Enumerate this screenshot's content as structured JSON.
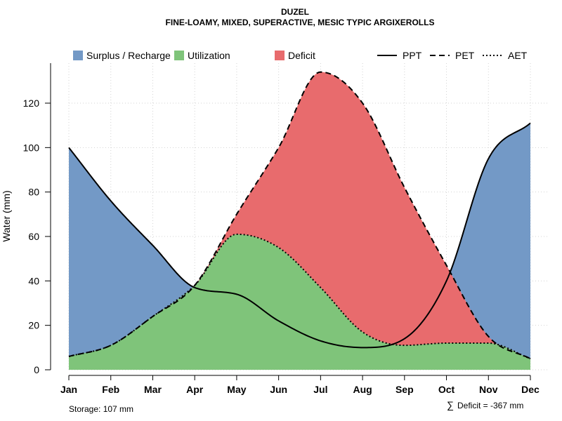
{
  "chart_data": {
    "type": "area",
    "title": "DUZEL",
    "subtitle": "FINE-LOAMY, MIXED, SUPERACTIVE, MESIC TYPIC ARGIXEROLLS",
    "xlabel": "",
    "ylabel": "Water (mm)",
    "ylim": [
      0,
      138
    ],
    "yticks": [
      0,
      20,
      40,
      60,
      80,
      100,
      120
    ],
    "grid": true,
    "categories": [
      "Jan",
      "Feb",
      "Mar",
      "Apr",
      "May",
      "Jun",
      "Jul",
      "Aug",
      "Sep",
      "Oct",
      "Nov",
      "Dec"
    ],
    "series": [
      {
        "name": "PPT",
        "values": [
          100,
          76,
          56,
          37,
          34,
          22,
          13,
          10,
          14,
          40,
          95,
          111
        ]
      },
      {
        "name": "PET",
        "values": [
          6,
          11,
          24,
          38,
          70,
          100,
          134,
          120,
          82,
          47,
          15,
          5
        ]
      },
      {
        "name": "AET",
        "values": [
          6,
          11,
          24,
          38,
          61,
          55,
          37,
          17,
          11,
          12,
          12,
          5
        ]
      }
    ],
    "legend": {
      "position": "top",
      "fill_items": [
        {
          "label": "Surplus / Recharge",
          "color": "#7399C6"
        },
        {
          "label": "Utilization",
          "color": "#7FC47A"
        },
        {
          "label": "Deficit",
          "color": "#E86B6D"
        }
      ],
      "line_items": [
        {
          "label": "PPT",
          "style": "solid"
        },
        {
          "label": "PET",
          "style": "dashed"
        },
        {
          "label": "AET",
          "style": "dotted"
        }
      ]
    },
    "annotations": {
      "storage": "Storage: 107 mm",
      "deficit_symbol": "∑",
      "deficit": "Deficit = -367 mm"
    }
  }
}
